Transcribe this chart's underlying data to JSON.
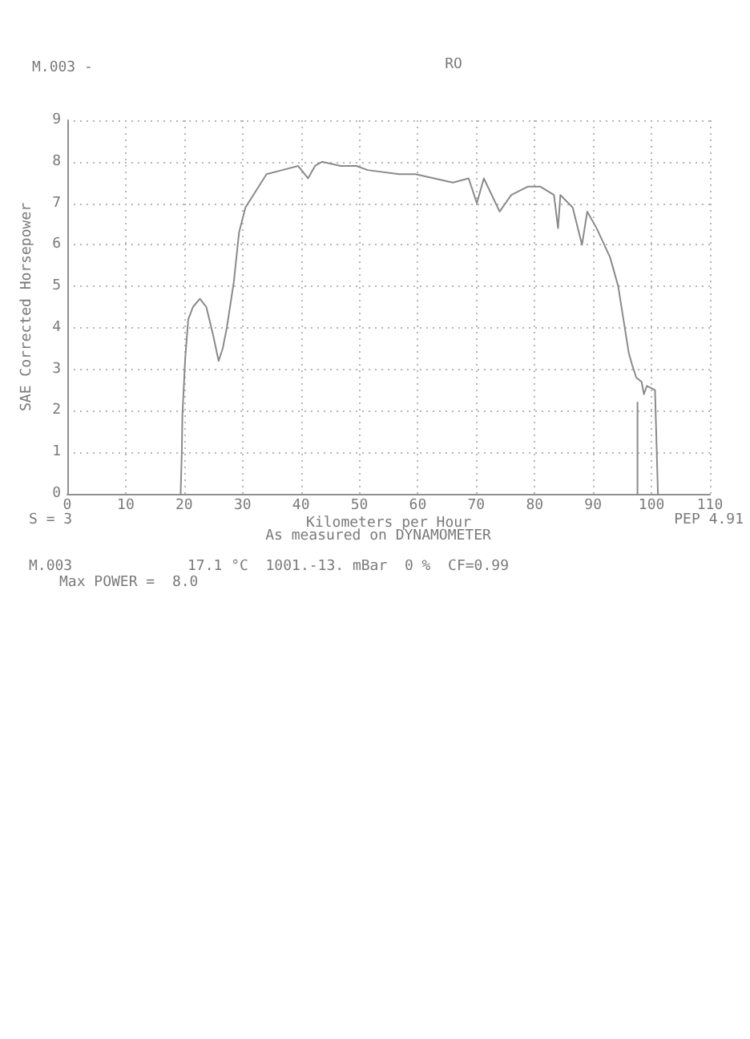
{
  "chart_data": {
    "type": "line",
    "xlabel": "Kilometers per Hour",
    "ylabel": "SAE Corrected Horsepower",
    "annotations": [
      "M.003 -",
      "RO",
      "S = 3",
      "PEP 4.91",
      "As measured on DYNAMOMETER",
      "M.003",
      "17.1 °C  1001.-13. mBar  0 %  CF=0.99",
      "Max POWER =  8.0"
    ],
    "series": [
      {
        "color": "#8a8a8a",
        "x": [
          19.4,
          19.6,
          19.7,
          20.2,
          20.7,
          21.5,
          22.7,
          23.8,
          25.0,
          25.9,
          26.6,
          27.3,
          28.5,
          29.4,
          30.5,
          32.3,
          34.1,
          36.8,
          39.5,
          41.2,
          42.4,
          43.6,
          46.8,
          49.5,
          51.4,
          56.8,
          59.6,
          66.0,
          68.7,
          70.1,
          71.3,
          74.0,
          76.0,
          78.8,
          81.0,
          83.3,
          84.0,
          84.4,
          86.5,
          88.1,
          89.0,
          90.6,
          92.9,
          94.3,
          95.2,
          96.1,
          96.7,
          97.4,
          98.3,
          98.7,
          99.2,
          100.6,
          101.1
        ],
        "values": [
          0,
          1.0,
          1.9,
          3.3,
          4.2,
          4.5,
          4.7,
          4.5,
          3.8,
          3.2,
          3.5,
          4.0,
          5.1,
          6.3,
          6.9,
          7.3,
          7.7,
          7.8,
          7.9,
          7.6,
          7.9,
          8.0,
          7.9,
          7.9,
          7.8,
          7.7,
          7.7,
          7.5,
          7.6,
          7.0,
          7.6,
          6.8,
          7.2,
          7.4,
          7.4,
          7.2,
          6.4,
          7.2,
          6.9,
          6.0,
          6.8,
          6.4,
          5.7,
          5.0,
          4.2,
          3.4,
          3.1,
          2.8,
          2.7,
          2.4,
          2.6,
          2.5,
          0
        ]
      },
      {
        "color": "#8a8a8a",
        "x": [
          97.6,
          97.6
        ],
        "values": [
          2.2,
          0
        ]
      }
    ],
    "xlim": [
      0,
      110
    ],
    "ylim": [
      0,
      9
    ],
    "xticks": [
      0,
      10,
      20,
      30,
      40,
      50,
      60,
      70,
      80,
      90,
      100,
      110
    ],
    "yticks": [
      0,
      1,
      2,
      3,
      4,
      5,
      6,
      7,
      8,
      9
    ],
    "grid": true,
    "marker": "none",
    "line_style": "solid"
  }
}
